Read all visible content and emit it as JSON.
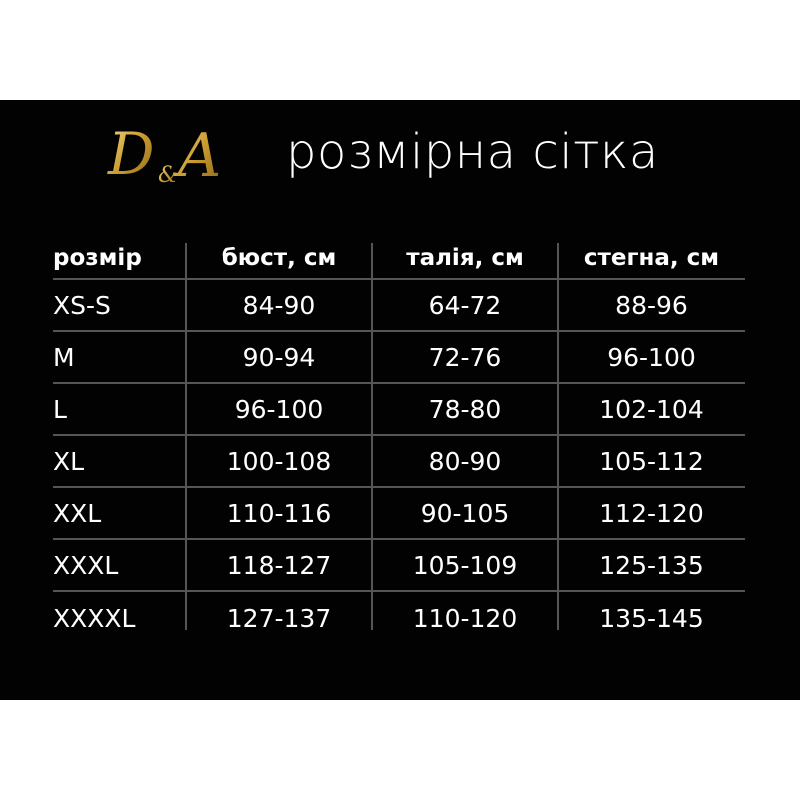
{
  "logo": {
    "text": "D&A",
    "color": "#d4a63a"
  },
  "title": "розмірна сітка",
  "table": {
    "headers": [
      "розмір",
      "бюст, см",
      "талія, см",
      "стегна, см"
    ],
    "rows": [
      [
        "XS-S",
        "84-90",
        "64-72",
        "88-96"
      ],
      [
        "M",
        "90-94",
        "72-76",
        "96-100"
      ],
      [
        "L",
        "96-100",
        "78-80",
        "102-104"
      ],
      [
        "XL",
        "100-108",
        "80-90",
        "105-112"
      ],
      [
        "XXL",
        "110-116",
        "90-105",
        "112-120"
      ],
      [
        "XXXL",
        "118-127",
        "105-109",
        "125-135"
      ],
      [
        "XXXXL",
        "127-137",
        "110-120",
        "135-145"
      ]
    ]
  }
}
